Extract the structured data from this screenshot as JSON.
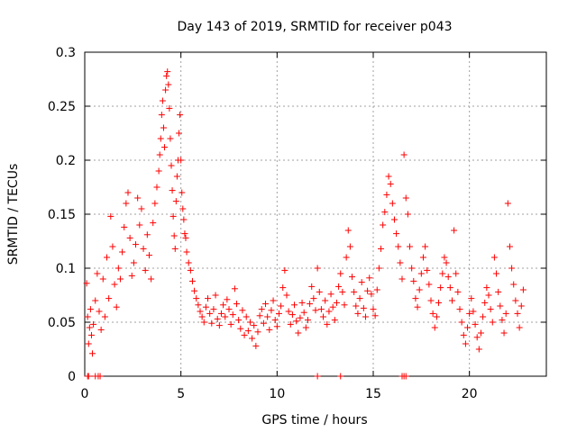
{
  "chart_data": {
    "type": "scatter",
    "title": "Day 143 of 2019, SRMTID for receiver p043",
    "xlabel": "GPS time / hours",
    "ylabel": "SRMTID / TECUs",
    "xlim": [
      0,
      24
    ],
    "ylim": [
      0,
      0.3
    ],
    "xticks": [
      0,
      5,
      10,
      15,
      20
    ],
    "xtick_labels": [
      "0",
      "5",
      "10",
      "15",
      "20"
    ],
    "yticks": [
      0,
      0.05,
      0.1,
      0.15,
      0.2,
      0.25,
      0.3
    ],
    "ytick_labels": [
      "0",
      "0.05",
      "0.1",
      "0.15",
      "0.2",
      "0.25",
      "0.3"
    ],
    "grid": true,
    "marker": "+",
    "color": "#ff0000",
    "series": [
      {
        "name": "SRMTID",
        "points": [
          [
            0.15,
            0.0
          ],
          [
            0.2,
            0.0
          ],
          [
            0.55,
            0.0
          ],
          [
            0.7,
            0.0
          ],
          [
            0.8,
            0.0
          ],
          [
            12.1,
            0.0
          ],
          [
            13.3,
            0.0
          ],
          [
            16.5,
            0.0
          ],
          [
            16.6,
            0.0
          ],
          [
            16.7,
            0.0
          ],
          [
            0.1,
            0.086
          ],
          [
            0.15,
            0.055
          ],
          [
            0.2,
            0.03
          ],
          [
            0.25,
            0.045
          ],
          [
            0.3,
            0.062
          ],
          [
            0.35,
            0.038
          ],
          [
            0.4,
            0.021
          ],
          [
            0.45,
            0.048
          ],
          [
            0.55,
            0.07
          ],
          [
            0.65,
            0.095
          ],
          [
            0.75,
            0.06
          ],
          [
            0.85,
            0.043
          ],
          [
            0.95,
            0.09
          ],
          [
            1.05,
            0.055
          ],
          [
            1.15,
            0.11
          ],
          [
            1.25,
            0.072
          ],
          [
            1.35,
            0.148
          ],
          [
            1.45,
            0.12
          ],
          [
            1.55,
            0.085
          ],
          [
            1.65,
            0.064
          ],
          [
            1.75,
            0.1
          ],
          [
            1.85,
            0.09
          ],
          [
            1.95,
            0.115
          ],
          [
            2.05,
            0.138
          ],
          [
            2.15,
            0.16
          ],
          [
            2.25,
            0.17
          ],
          [
            2.35,
            0.128
          ],
          [
            2.45,
            0.093
          ],
          [
            2.55,
            0.105
          ],
          [
            2.65,
            0.122
          ],
          [
            2.75,
            0.165
          ],
          [
            2.85,
            0.14
          ],
          [
            2.95,
            0.155
          ],
          [
            3.05,
            0.118
          ],
          [
            3.15,
            0.098
          ],
          [
            3.25,
            0.131
          ],
          [
            3.35,
            0.112
          ],
          [
            3.45,
            0.09
          ],
          [
            3.55,
            0.142
          ],
          [
            3.65,
            0.16
          ],
          [
            3.75,
            0.175
          ],
          [
            3.85,
            0.19
          ],
          [
            3.9,
            0.205
          ],
          [
            3.95,
            0.22
          ],
          [
            4.0,
            0.242
          ],
          [
            4.05,
            0.255
          ],
          [
            4.1,
            0.23
          ],
          [
            4.15,
            0.212
          ],
          [
            4.2,
            0.265
          ],
          [
            4.25,
            0.278
          ],
          [
            4.3,
            0.282
          ],
          [
            4.35,
            0.27
          ],
          [
            4.4,
            0.248
          ],
          [
            4.45,
            0.22
          ],
          [
            4.5,
            0.195
          ],
          [
            4.55,
            0.172
          ],
          [
            4.6,
            0.148
          ],
          [
            4.65,
            0.13
          ],
          [
            4.7,
            0.118
          ],
          [
            4.75,
            0.162
          ],
          [
            4.8,
            0.185
          ],
          [
            4.85,
            0.2
          ],
          [
            4.9,
            0.225
          ],
          [
            4.95,
            0.242
          ],
          [
            5.0,
            0.2
          ],
          [
            5.05,
            0.17
          ],
          [
            5.1,
            0.155
          ],
          [
            5.15,
            0.145
          ],
          [
            5.2,
            0.132
          ],
          [
            5.25,
            0.128
          ],
          [
            5.3,
            0.115
          ],
          [
            5.4,
            0.105
          ],
          [
            5.5,
            0.098
          ],
          [
            5.6,
            0.088
          ],
          [
            5.7,
            0.079
          ],
          [
            5.8,
            0.072
          ],
          [
            5.9,
            0.066
          ],
          [
            6.0,
            0.06
          ],
          [
            6.1,
            0.055
          ],
          [
            6.2,
            0.05
          ],
          [
            6.3,
            0.064
          ],
          [
            6.4,
            0.072
          ],
          [
            6.5,
            0.058
          ],
          [
            6.6,
            0.049
          ],
          [
            6.7,
            0.062
          ],
          [
            6.8,
            0.075
          ],
          [
            6.9,
            0.053
          ],
          [
            7.0,
            0.047
          ],
          [
            7.1,
            0.058
          ],
          [
            7.2,
            0.066
          ],
          [
            7.3,
            0.055
          ],
          [
            7.4,
            0.071
          ],
          [
            7.5,
            0.062
          ],
          [
            7.6,
            0.048
          ],
          [
            7.7,
            0.057
          ],
          [
            7.8,
            0.081
          ],
          [
            7.9,
            0.067
          ],
          [
            8.0,
            0.052
          ],
          [
            8.1,
            0.044
          ],
          [
            8.2,
            0.061
          ],
          [
            8.3,
            0.038
          ],
          [
            8.4,
            0.055
          ],
          [
            8.5,
            0.042
          ],
          [
            8.6,
            0.05
          ],
          [
            8.7,
            0.035
          ],
          [
            8.8,
            0.047
          ],
          [
            8.9,
            0.028
          ],
          [
            9.0,
            0.041
          ],
          [
            9.1,
            0.056
          ],
          [
            9.2,
            0.062
          ],
          [
            9.3,
            0.049
          ],
          [
            9.4,
            0.067
          ],
          [
            9.5,
            0.055
          ],
          [
            9.6,
            0.043
          ],
          [
            9.7,
            0.061
          ],
          [
            9.8,
            0.07
          ],
          [
            9.9,
            0.052
          ],
          [
            10.0,
            0.046
          ],
          [
            10.1,
            0.058
          ],
          [
            10.2,
            0.065
          ],
          [
            10.3,
            0.082
          ],
          [
            10.4,
            0.098
          ],
          [
            10.5,
            0.075
          ],
          [
            10.6,
            0.06
          ],
          [
            10.7,
            0.048
          ],
          [
            10.8,
            0.057
          ],
          [
            10.9,
            0.066
          ],
          [
            11.0,
            0.051
          ],
          [
            11.1,
            0.04
          ],
          [
            11.2,
            0.054
          ],
          [
            11.3,
            0.068
          ],
          [
            11.4,
            0.059
          ],
          [
            11.5,
            0.045
          ],
          [
            11.6,
            0.052
          ],
          [
            11.7,
            0.067
          ],
          [
            11.8,
            0.083
          ],
          [
            11.9,
            0.072
          ],
          [
            12.0,
            0.061
          ],
          [
            12.1,
            0.1
          ],
          [
            12.2,
            0.078
          ],
          [
            12.3,
            0.062
          ],
          [
            12.4,
            0.055
          ],
          [
            12.5,
            0.07
          ],
          [
            12.6,
            0.048
          ],
          [
            12.7,
            0.06
          ],
          [
            12.8,
            0.076
          ],
          [
            12.9,
            0.064
          ],
          [
            13.0,
            0.052
          ],
          [
            13.1,
            0.068
          ],
          [
            13.2,
            0.083
          ],
          [
            13.3,
            0.095
          ],
          [
            13.4,
            0.078
          ],
          [
            13.5,
            0.066
          ],
          [
            13.6,
            0.11
          ],
          [
            13.7,
            0.135
          ],
          [
            13.8,
            0.12
          ],
          [
            13.9,
            0.092
          ],
          [
            14.0,
            0.078
          ],
          [
            14.1,
            0.065
          ],
          [
            14.2,
            0.058
          ],
          [
            14.3,
            0.072
          ],
          [
            14.4,
            0.087
          ],
          [
            14.5,
            0.063
          ],
          [
            14.6,
            0.055
          ],
          [
            14.7,
            0.079
          ],
          [
            14.8,
            0.091
          ],
          [
            14.9,
            0.076
          ],
          [
            15.0,
            0.062
          ],
          [
            15.1,
            0.056
          ],
          [
            15.2,
            0.08
          ],
          [
            15.3,
            0.1
          ],
          [
            15.4,
            0.118
          ],
          [
            15.5,
            0.14
          ],
          [
            15.6,
            0.152
          ],
          [
            15.7,
            0.168
          ],
          [
            15.8,
            0.185
          ],
          [
            15.9,
            0.178
          ],
          [
            16.0,
            0.16
          ],
          [
            16.1,
            0.145
          ],
          [
            16.2,
            0.132
          ],
          [
            16.3,
            0.12
          ],
          [
            16.4,
            0.105
          ],
          [
            16.5,
            0.09
          ],
          [
            16.6,
            0.205
          ],
          [
            16.7,
            0.165
          ],
          [
            16.8,
            0.15
          ],
          [
            16.9,
            0.12
          ],
          [
            17.0,
            0.1
          ],
          [
            17.1,
            0.088
          ],
          [
            17.2,
            0.072
          ],
          [
            17.3,
            0.064
          ],
          [
            17.4,
            0.08
          ],
          [
            17.5,
            0.095
          ],
          [
            17.6,
            0.11
          ],
          [
            17.7,
            0.12
          ],
          [
            17.8,
            0.098
          ],
          [
            17.9,
            0.085
          ],
          [
            18.0,
            0.07
          ],
          [
            18.1,
            0.058
          ],
          [
            18.2,
            0.045
          ],
          [
            18.3,
            0.055
          ],
          [
            18.4,
            0.068
          ],
          [
            18.5,
            0.082
          ],
          [
            18.6,
            0.095
          ],
          [
            18.7,
            0.11
          ],
          [
            18.8,
            0.105
          ],
          [
            18.9,
            0.092
          ],
          [
            19.0,
            0.082
          ],
          [
            19.1,
            0.07
          ],
          [
            19.2,
            0.135
          ],
          [
            19.3,
            0.095
          ],
          [
            19.4,
            0.078
          ],
          [
            19.5,
            0.062
          ],
          [
            19.6,
            0.05
          ],
          [
            19.7,
            0.038
          ],
          [
            19.8,
            0.03
          ],
          [
            19.9,
            0.045
          ],
          [
            20.0,
            0.058
          ],
          [
            20.1,
            0.072
          ],
          [
            20.2,
            0.06
          ],
          [
            20.3,
            0.048
          ],
          [
            20.4,
            0.036
          ],
          [
            20.5,
            0.025
          ],
          [
            20.6,
            0.04
          ],
          [
            20.7,
            0.055
          ],
          [
            20.8,
            0.068
          ],
          [
            20.9,
            0.082
          ],
          [
            21.0,
            0.075
          ],
          [
            21.1,
            0.062
          ],
          [
            21.2,
            0.05
          ],
          [
            21.3,
            0.11
          ],
          [
            21.4,
            0.095
          ],
          [
            21.5,
            0.078
          ],
          [
            21.6,
            0.065
          ],
          [
            21.7,
            0.052
          ],
          [
            21.8,
            0.04
          ],
          [
            21.9,
            0.058
          ],
          [
            22.0,
            0.16
          ],
          [
            22.1,
            0.12
          ],
          [
            22.2,
            0.1
          ],
          [
            22.3,
            0.085
          ],
          [
            22.4,
            0.07
          ],
          [
            22.5,
            0.058
          ],
          [
            22.6,
            0.045
          ],
          [
            22.7,
            0.065
          ],
          [
            22.8,
            0.08
          ]
        ]
      }
    ]
  }
}
